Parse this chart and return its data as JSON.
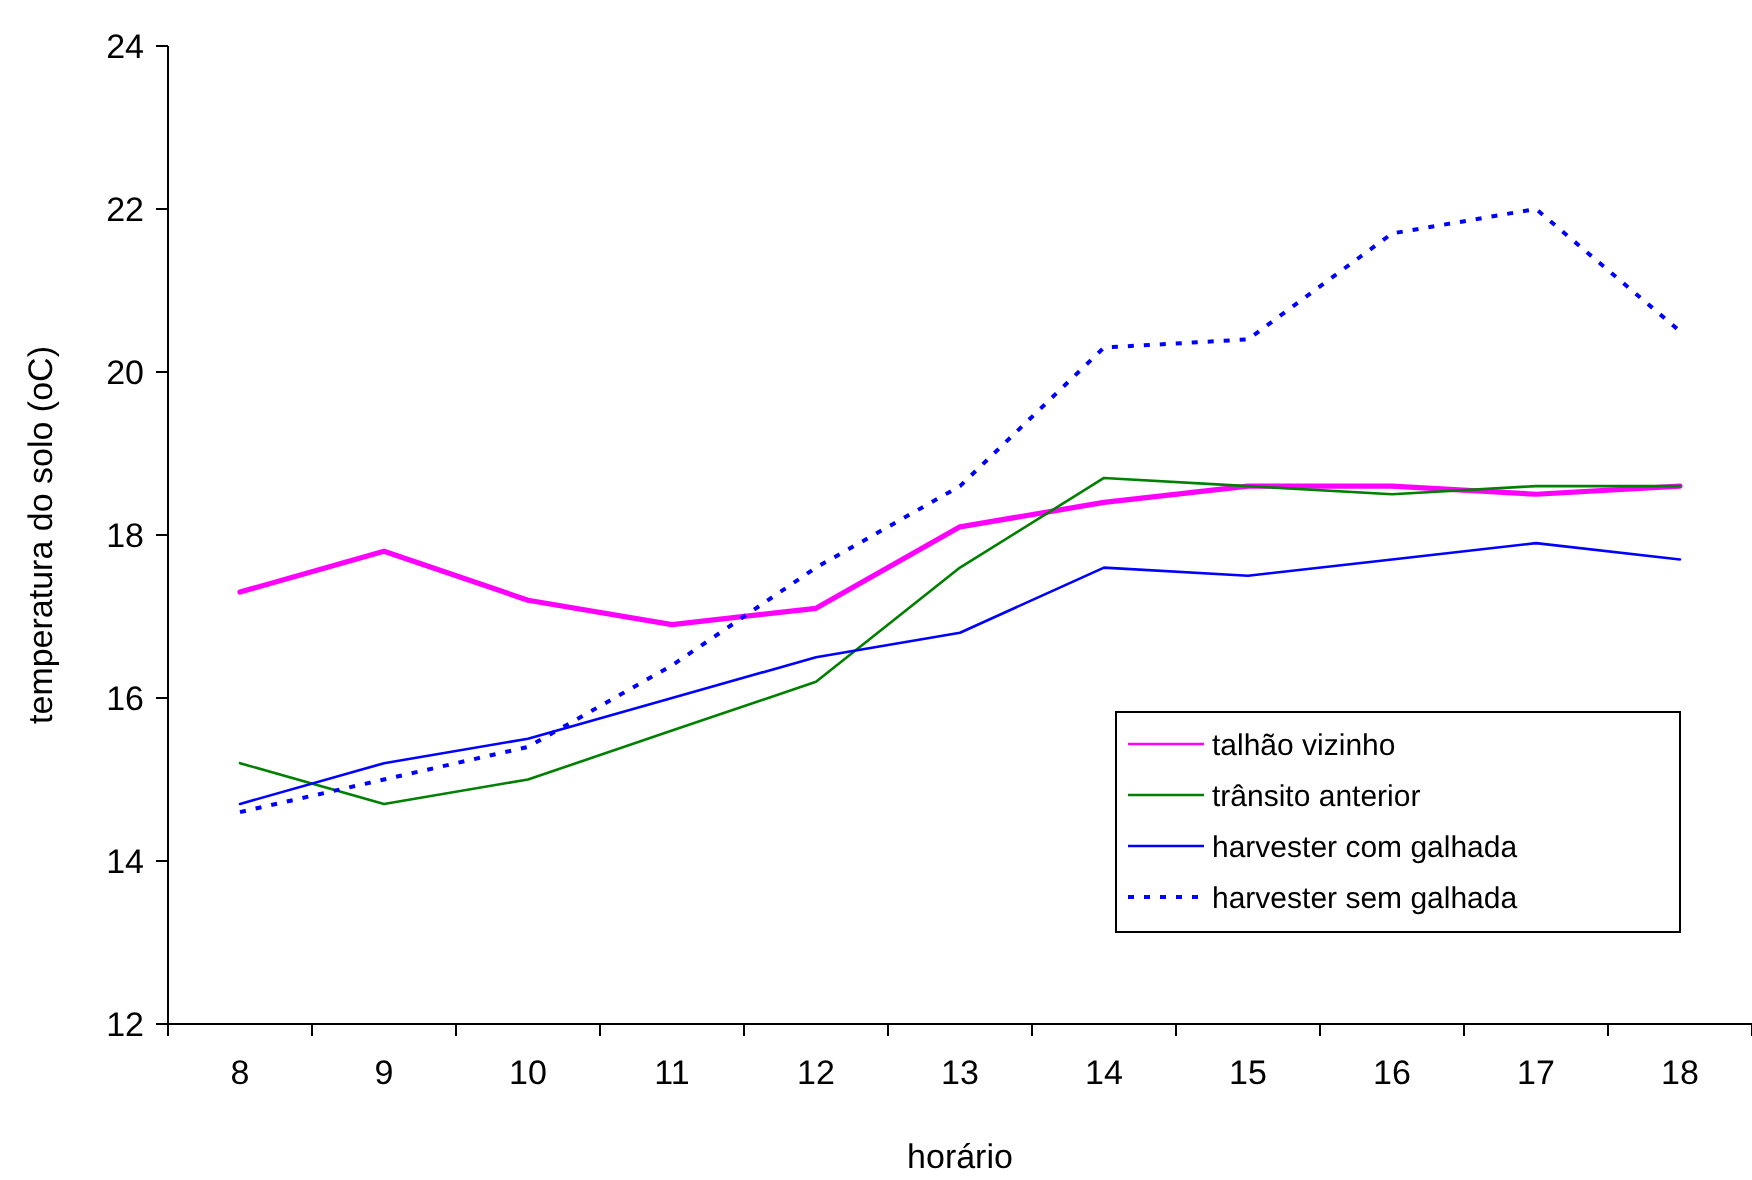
{
  "chart_data": {
    "type": "line",
    "xlabel": "horário",
    "ylabel": "temperatura do solo (oC)",
    "categories": [
      "8",
      "9",
      "10",
      "11",
      "12",
      "13",
      "14",
      "15",
      "16",
      "17",
      "18"
    ],
    "ylim": [
      12,
      24
    ],
    "yticks": [
      12,
      14,
      16,
      18,
      20,
      22,
      24
    ],
    "grid": false,
    "legend": "bottom right",
    "marker": "none",
    "series": [
      {
        "name": "talhão vizinho",
        "color": "#ff00ff",
        "line_style": "solid",
        "values": [
          17.3,
          17.8,
          17.2,
          16.9,
          17.1,
          18.1,
          18.4,
          18.6,
          18.6,
          18.5,
          18.6
        ]
      },
      {
        "name": "trânsito anterior",
        "color": "#008000",
        "line_style": "solid",
        "values": [
          15.2,
          14.7,
          15.0,
          15.6,
          16.2,
          17.6,
          18.7,
          18.6,
          18.5,
          18.6,
          18.6
        ]
      },
      {
        "name": "harvester com galhada",
        "color": "#0000ff",
        "line_style": "solid",
        "values": [
          14.7,
          15.2,
          15.5,
          16.0,
          16.5,
          16.8,
          17.6,
          17.5,
          17.7,
          17.9,
          17.7
        ]
      },
      {
        "name": "harvester sem galhada",
        "color": "#0000ff",
        "line_style": "dotted",
        "values": [
          14.6,
          15.0,
          15.4,
          16.4,
          17.6,
          18.6,
          20.3,
          20.4,
          21.7,
          22.0,
          20.5
        ]
      }
    ]
  }
}
